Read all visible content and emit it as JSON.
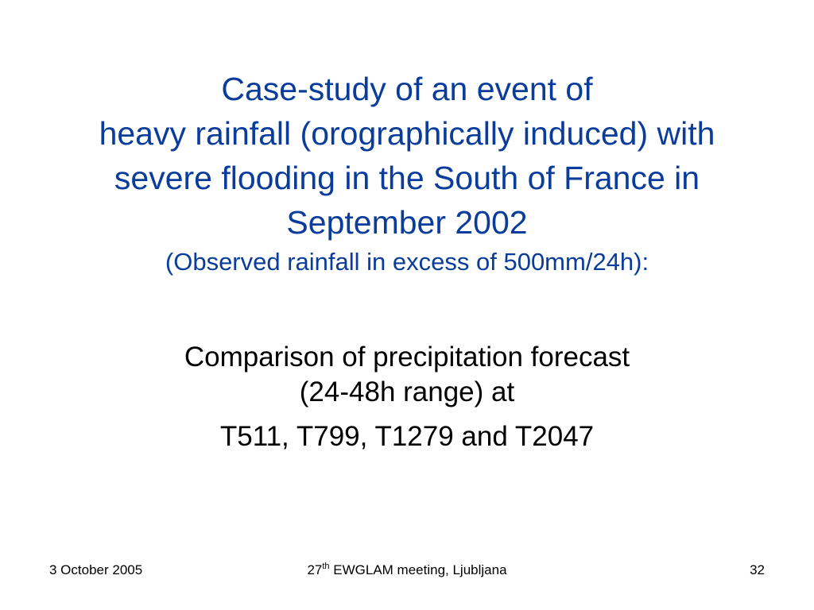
{
  "title": {
    "lines": [
      "Case-study of an event of",
      "heavy rainfall (orographically induced) with",
      "severe flooding in the South of France in",
      "September 2002"
    ],
    "subtitle": "(Observed rainfall in excess of 500mm/24h):"
  },
  "body": {
    "lines": [
      "Comparison of precipitation forecast",
      "(24-48h range) at",
      "T511, T799, T1279 and T2047"
    ]
  },
  "footer": {
    "date": "3 October 2005",
    "meeting_number": "27",
    "meeting_suffix": "th",
    "meeting_text": " EWGLAM meeting, Ljubljana",
    "page_number": "32"
  },
  "colors": {
    "title": "#0a3c9c",
    "body": "#000000",
    "background": "#ffffff"
  }
}
